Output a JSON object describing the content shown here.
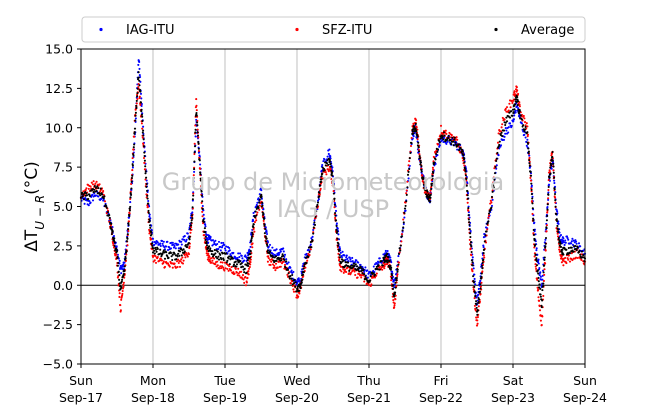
{
  "chart_data": {
    "type": "scatter",
    "ylabel": "ΔT_{U−R}(°C)",
    "ylabel_parts": {
      "delta": "ΔT",
      "sub": "U − R",
      "unit": "(°C)"
    },
    "ylim": [
      -5.0,
      15.0
    ],
    "yticks": [
      "−5.0",
      "−2.5",
      "0.0",
      "2.5",
      "5.0",
      "7.5",
      "10.0",
      "12.5",
      "15.0"
    ],
    "yticks_values": [
      -5.0,
      -2.5,
      0.0,
      2.5,
      5.0,
      7.5,
      10.0,
      12.5,
      15.0
    ],
    "xlim": [
      "2017-09-17",
      "2017-09-24"
    ],
    "xticks": [
      {
        "day": "Sun",
        "date": "Sep-17"
      },
      {
        "day": "Mon",
        "date": "Sep-18"
      },
      {
        "day": "Tue",
        "date": "Sep-19"
      },
      {
        "day": "Wed",
        "date": "Sep-20"
      },
      {
        "day": "Thu",
        "date": "Sep-21"
      },
      {
        "day": "Fri",
        "date": "Sep-22"
      },
      {
        "day": "Sat",
        "date": "Sep-23"
      },
      {
        "day": "Sun",
        "date": "Sep-24"
      }
    ],
    "grid": "vertical",
    "legend_position": "top",
    "watermark": [
      "Grupo de Micrometeorologia",
      "IAG / USP"
    ],
    "reference_line": 0.0,
    "series": [
      {
        "name": "IAG-ITU",
        "color": "#0000ff",
        "points": [
          [
            0.0,
            5.5
          ],
          [
            0.1,
            5.2
          ],
          [
            0.2,
            5.8
          ],
          [
            0.3,
            5.5
          ],
          [
            0.4,
            4.2
          ],
          [
            0.45,
            3.2
          ],
          [
            0.5,
            2.2
          ],
          [
            0.55,
            1.0
          ],
          [
            0.6,
            1.2
          ],
          [
            0.65,
            3.5
          ],
          [
            0.7,
            6.0
          ],
          [
            0.75,
            9.5
          ],
          [
            0.8,
            14.5
          ],
          [
            0.85,
            11.0
          ],
          [
            0.9,
            7.5
          ],
          [
            0.95,
            4.5
          ],
          [
            1.0,
            2.8
          ],
          [
            1.1,
            2.6
          ],
          [
            1.2,
            2.5
          ],
          [
            1.3,
            2.4
          ],
          [
            1.4,
            2.7
          ],
          [
            1.5,
            3.2
          ],
          [
            1.55,
            5.0
          ],
          [
            1.6,
            10.5
          ],
          [
            1.65,
            8.0
          ],
          [
            1.7,
            4.5
          ],
          [
            1.75,
            3.0
          ],
          [
            1.8,
            2.8
          ],
          [
            1.9,
            2.5
          ],
          [
            2.0,
            2.4
          ],
          [
            2.1,
            2.0
          ],
          [
            2.2,
            1.8
          ],
          [
            2.3,
            1.7
          ],
          [
            2.35,
            2.5
          ],
          [
            2.4,
            4.5
          ],
          [
            2.5,
            6.0
          ],
          [
            2.55,
            4.0
          ],
          [
            2.6,
            2.5
          ],
          [
            2.7,
            2.0
          ],
          [
            2.8,
            2.2
          ],
          [
            2.9,
            1.0
          ],
          [
            3.0,
            0.2
          ],
          [
            3.05,
            0.3
          ],
          [
            3.1,
            1.5
          ],
          [
            3.2,
            2.8
          ],
          [
            3.3,
            5.5
          ],
          [
            3.35,
            7.5
          ],
          [
            3.45,
            8.5
          ],
          [
            3.5,
            7.0
          ],
          [
            3.55,
            4.0
          ],
          [
            3.6,
            2.0
          ],
          [
            3.7,
            1.6
          ],
          [
            3.8,
            1.4
          ],
          [
            3.9,
            1.2
          ],
          [
            4.0,
            0.6
          ],
          [
            4.1,
            1.2
          ],
          [
            4.2,
            1.8
          ],
          [
            4.25,
            2.0
          ],
          [
            4.3,
            1.5
          ],
          [
            4.35,
            0.0
          ],
          [
            4.4,
            1.5
          ],
          [
            4.5,
            4.5
          ],
          [
            4.6,
            9.5
          ],
          [
            4.65,
            10.0
          ],
          [
            4.7,
            8.0
          ],
          [
            4.75,
            7.0
          ],
          [
            4.8,
            5.8
          ],
          [
            4.85,
            5.5
          ],
          [
            4.9,
            7.5
          ],
          [
            5.0,
            9.3
          ],
          [
            5.1,
            9.2
          ],
          [
            5.2,
            9.0
          ],
          [
            5.3,
            8.5
          ],
          [
            5.35,
            7.5
          ],
          [
            5.4,
            4.0
          ],
          [
            5.45,
            1.0
          ],
          [
            5.5,
            -1.2
          ],
          [
            5.55,
            0.5
          ],
          [
            5.6,
            3.0
          ],
          [
            5.7,
            5.0
          ],
          [
            5.8,
            8.5
          ],
          [
            5.9,
            9.8
          ],
          [
            6.0,
            10.3
          ],
          [
            6.05,
            11.5
          ],
          [
            6.1,
            10.5
          ],
          [
            6.2,
            9.0
          ],
          [
            6.25,
            7.0
          ],
          [
            6.3,
            3.5
          ],
          [
            6.35,
            1.5
          ],
          [
            6.4,
            0.0
          ],
          [
            6.45,
            3.0
          ],
          [
            6.5,
            6.5
          ],
          [
            6.55,
            8.0
          ],
          [
            6.6,
            5.0
          ],
          [
            6.65,
            3.0
          ],
          [
            6.7,
            2.8
          ],
          [
            6.8,
            2.9
          ],
          [
            6.9,
            2.5
          ],
          [
            7.0,
            2.0
          ]
        ]
      },
      {
        "name": "SFZ-ITU",
        "color": "#ff0000",
        "points": [
          [
            0.0,
            5.7
          ],
          [
            0.1,
            6.2
          ],
          [
            0.2,
            6.4
          ],
          [
            0.3,
            6.0
          ],
          [
            0.4,
            4.0
          ],
          [
            0.45,
            2.8
          ],
          [
            0.5,
            1.5
          ],
          [
            0.55,
            -1.5
          ],
          [
            0.6,
            0.5
          ],
          [
            0.65,
            3.0
          ],
          [
            0.7,
            6.5
          ],
          [
            0.75,
            10.5
          ],
          [
            0.8,
            12.8
          ],
          [
            0.85,
            10.0
          ],
          [
            0.9,
            6.5
          ],
          [
            0.95,
            3.5
          ],
          [
            1.0,
            1.8
          ],
          [
            1.1,
            1.5
          ],
          [
            1.2,
            1.3
          ],
          [
            1.3,
            1.2
          ],
          [
            1.4,
            1.5
          ],
          [
            1.5,
            2.2
          ],
          [
            1.55,
            4.5
          ],
          [
            1.6,
            11.8
          ],
          [
            1.65,
            7.5
          ],
          [
            1.7,
            3.5
          ],
          [
            1.75,
            2.0
          ],
          [
            1.8,
            1.6
          ],
          [
            1.9,
            1.3
          ],
          [
            2.0,
            1.2
          ],
          [
            2.1,
            1.0
          ],
          [
            2.2,
            0.8
          ],
          [
            2.3,
            0.2
          ],
          [
            2.35,
            1.5
          ],
          [
            2.4,
            3.5
          ],
          [
            2.5,
            5.5
          ],
          [
            2.55,
            3.5
          ],
          [
            2.6,
            1.6
          ],
          [
            2.7,
            1.2
          ],
          [
            2.8,
            1.5
          ],
          [
            2.9,
            0.5
          ],
          [
            3.0,
            -0.6
          ],
          [
            3.05,
            -0.2
          ],
          [
            3.1,
            1.0
          ],
          [
            3.2,
            2.5
          ],
          [
            3.3,
            5.5
          ],
          [
            3.35,
            7.0
          ],
          [
            3.45,
            7.5
          ],
          [
            3.5,
            6.5
          ],
          [
            3.55,
            3.0
          ],
          [
            3.6,
            1.2
          ],
          [
            3.7,
            0.9
          ],
          [
            3.8,
            0.8
          ],
          [
            3.9,
            0.6
          ],
          [
            4.0,
            0.0
          ],
          [
            4.1,
            0.8
          ],
          [
            4.2,
            1.2
          ],
          [
            4.25,
            1.6
          ],
          [
            4.3,
            1.0
          ],
          [
            4.35,
            -1.5
          ],
          [
            4.4,
            1.0
          ],
          [
            4.5,
            5.0
          ],
          [
            4.6,
            9.8
          ],
          [
            4.65,
            10.5
          ],
          [
            4.7,
            8.5
          ],
          [
            4.75,
            6.5
          ],
          [
            4.8,
            5.8
          ],
          [
            4.85,
            5.6
          ],
          [
            4.9,
            8.0
          ],
          [
            5.0,
            9.9
          ],
          [
            5.1,
            9.5
          ],
          [
            5.2,
            9.3
          ],
          [
            5.3,
            8.3
          ],
          [
            5.35,
            6.5
          ],
          [
            5.4,
            3.0
          ],
          [
            5.45,
            0.0
          ],
          [
            5.5,
            -2.5
          ],
          [
            5.55,
            -0.5
          ],
          [
            5.6,
            2.0
          ],
          [
            5.7,
            5.5
          ],
          [
            5.8,
            9.5
          ],
          [
            5.9,
            11.0
          ],
          [
            6.0,
            11.8
          ],
          [
            6.05,
            12.5
          ],
          [
            6.1,
            11.0
          ],
          [
            6.2,
            10.0
          ],
          [
            6.25,
            6.5
          ],
          [
            6.3,
            2.0
          ],
          [
            6.35,
            -0.5
          ],
          [
            6.4,
            -2.5
          ],
          [
            6.45,
            2.0
          ],
          [
            6.5,
            7.0
          ],
          [
            6.55,
            8.5
          ],
          [
            6.6,
            4.0
          ],
          [
            6.65,
            2.0
          ],
          [
            6.7,
            1.5
          ],
          [
            6.8,
            1.8
          ],
          [
            6.9,
            2.0
          ],
          [
            7.0,
            1.5
          ]
        ]
      },
      {
        "name": "Average",
        "color": "#000000",
        "points": [
          [
            0.0,
            5.6
          ],
          [
            0.1,
            5.7
          ],
          [
            0.2,
            6.1
          ],
          [
            0.3,
            5.8
          ],
          [
            0.4,
            4.1
          ],
          [
            0.45,
            3.0
          ],
          [
            0.5,
            1.9
          ],
          [
            0.55,
            -0.3
          ],
          [
            0.6,
            0.8
          ],
          [
            0.65,
            3.2
          ],
          [
            0.7,
            6.2
          ],
          [
            0.75,
            10.0
          ],
          [
            0.8,
            13.6
          ],
          [
            0.85,
            10.5
          ],
          [
            0.9,
            7.0
          ],
          [
            0.95,
            4.0
          ],
          [
            1.0,
            2.3
          ],
          [
            1.1,
            2.0
          ],
          [
            1.2,
            1.9
          ],
          [
            1.3,
            1.8
          ],
          [
            1.4,
            2.1
          ],
          [
            1.5,
            2.7
          ],
          [
            1.55,
            4.7
          ],
          [
            1.6,
            11.1
          ],
          [
            1.65,
            7.7
          ],
          [
            1.7,
            4.0
          ],
          [
            1.75,
            2.5
          ],
          [
            1.8,
            2.2
          ],
          [
            1.9,
            1.9
          ],
          [
            2.0,
            1.8
          ],
          [
            2.1,
            1.5
          ],
          [
            2.2,
            1.3
          ],
          [
            2.3,
            1.0
          ],
          [
            2.35,
            2.0
          ],
          [
            2.4,
            4.0
          ],
          [
            2.5,
            5.7
          ],
          [
            2.55,
            3.7
          ],
          [
            2.6,
            2.0
          ],
          [
            2.7,
            1.6
          ],
          [
            2.8,
            1.8
          ],
          [
            2.9,
            0.7
          ],
          [
            3.0,
            -0.2
          ],
          [
            3.05,
            0.0
          ],
          [
            3.1,
            1.2
          ],
          [
            3.2,
            2.6
          ],
          [
            3.3,
            5.5
          ],
          [
            3.35,
            7.2
          ],
          [
            3.45,
            8.0
          ],
          [
            3.5,
            6.7
          ],
          [
            3.55,
            3.5
          ],
          [
            3.6,
            1.6
          ],
          [
            3.7,
            1.2
          ],
          [
            3.8,
            1.1
          ],
          [
            3.9,
            0.9
          ],
          [
            4.0,
            0.3
          ],
          [
            4.1,
            1.0
          ],
          [
            4.2,
            1.5
          ],
          [
            4.25,
            1.8
          ],
          [
            4.3,
            1.2
          ],
          [
            4.35,
            -0.7
          ],
          [
            4.4,
            1.2
          ],
          [
            4.5,
            4.7
          ],
          [
            4.6,
            9.6
          ],
          [
            4.65,
            10.2
          ],
          [
            4.7,
            8.2
          ],
          [
            4.75,
            6.7
          ],
          [
            4.8,
            5.8
          ],
          [
            4.85,
            5.5
          ],
          [
            4.9,
            7.7
          ],
          [
            5.0,
            9.6
          ],
          [
            5.1,
            9.3
          ],
          [
            5.2,
            9.1
          ],
          [
            5.3,
            8.4
          ],
          [
            5.35,
            7.0
          ],
          [
            5.4,
            3.5
          ],
          [
            5.45,
            0.5
          ],
          [
            5.5,
            -1.8
          ],
          [
            5.55,
            0.0
          ],
          [
            5.6,
            2.5
          ],
          [
            5.7,
            5.2
          ],
          [
            5.8,
            9.0
          ],
          [
            5.9,
            10.4
          ],
          [
            6.0,
            11.0
          ],
          [
            6.05,
            12.0
          ],
          [
            6.1,
            10.7
          ],
          [
            6.2,
            9.5
          ],
          [
            6.25,
            6.7
          ],
          [
            6.3,
            2.7
          ],
          [
            6.35,
            0.5
          ],
          [
            6.4,
            -1.2
          ],
          [
            6.45,
            2.5
          ],
          [
            6.5,
            6.7
          ],
          [
            6.55,
            8.2
          ],
          [
            6.6,
            4.5
          ],
          [
            6.65,
            2.5
          ],
          [
            6.7,
            2.1
          ],
          [
            6.8,
            2.3
          ],
          [
            6.9,
            2.2
          ],
          [
            7.0,
            1.7
          ]
        ]
      }
    ]
  }
}
